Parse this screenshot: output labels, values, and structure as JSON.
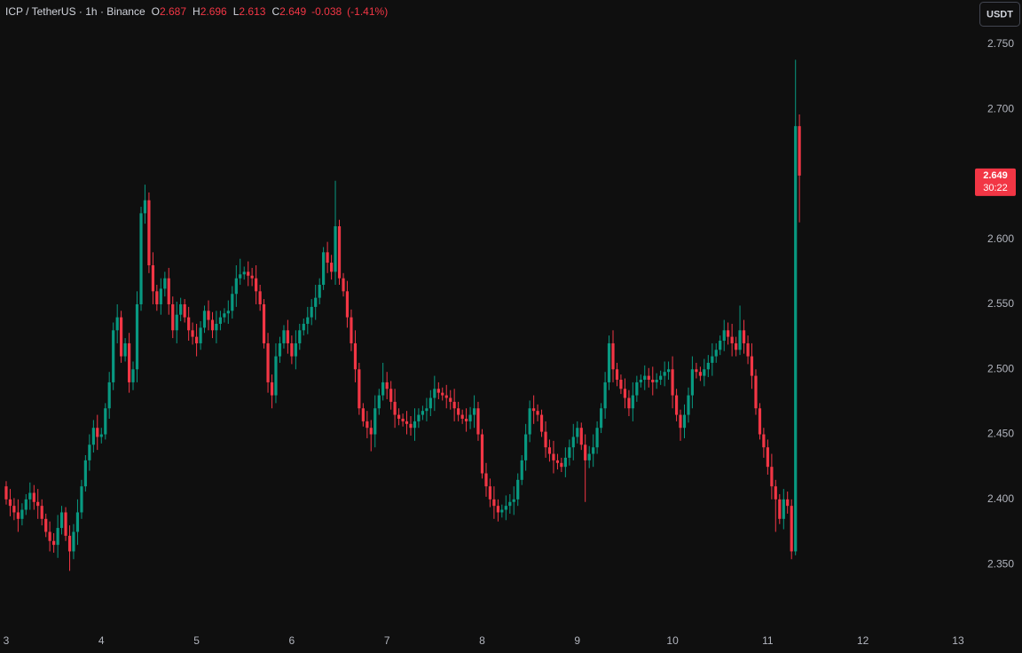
{
  "chart_data": {
    "type": "candlestick",
    "symbol": "ICP / TetherUS · 1h · Binance",
    "legend": {
      "o_label": "O",
      "o": 2.687,
      "h_label": "H",
      "h": 2.696,
      "l_label": "L",
      "l": 2.613,
      "c_label": "C",
      "c": 2.649,
      "change": -0.038,
      "change_pct": "(-1.41%)"
    },
    "currency": "USDT",
    "last_price": 2.649,
    "countdown": "30:22",
    "up_color": "#089981",
    "down_color": "#f23645",
    "grid": false,
    "xlim": [
      2.935,
      13.14
    ],
    "xticks": [
      3,
      4,
      5,
      6,
      7,
      8,
      9,
      10,
      11,
      12,
      13
    ],
    "ylim": [
      2.303,
      2.784
    ],
    "yticks": [
      {
        "value": 2.35,
        "label": "2.350"
      },
      {
        "value": 2.4,
        "label": "2.400"
      },
      {
        "value": 2.45,
        "label": "2.450"
      },
      {
        "value": 2.5,
        "label": "2.500"
      },
      {
        "value": 2.55,
        "label": "2.550"
      },
      {
        "value": 2.6,
        "label": "2.600"
      },
      {
        "value": 2.65,
        "label": "2.650"
      },
      {
        "value": 2.7,
        "label": "2.700"
      },
      {
        "value": 2.75,
        "label": "2.750"
      }
    ],
    "x": [
      3,
      3.042,
      3.083,
      3.125,
      3.167,
      3.208,
      3.25,
      3.292,
      3.333,
      3.375,
      3.417,
      3.458,
      3.5,
      3.542,
      3.583,
      3.625,
      3.667,
      3.708,
      3.75,
      3.792,
      3.833,
      3.875,
      3.917,
      3.958,
      4,
      4.042,
      4.083,
      4.125,
      4.167,
      4.208,
      4.25,
      4.292,
      4.333,
      4.375,
      4.417,
      4.458,
      4.5,
      4.542,
      4.583,
      4.625,
      4.667,
      4.708,
      4.75,
      4.792,
      4.833,
      4.875,
      4.917,
      4.958,
      5,
      5.042,
      5.083,
      5.125,
      5.167,
      5.208,
      5.25,
      5.292,
      5.333,
      5.375,
      5.417,
      5.458,
      5.5,
      5.542,
      5.583,
      5.625,
      5.667,
      5.708,
      5.75,
      5.792,
      5.833,
      5.875,
      5.917,
      5.958,
      6,
      6.042,
      6.083,
      6.125,
      6.167,
      6.208,
      6.25,
      6.292,
      6.333,
      6.375,
      6.417,
      6.458,
      6.5,
      6.542,
      6.583,
      6.625,
      6.667,
      6.708,
      6.75,
      6.792,
      6.833,
      6.875,
      6.917,
      6.958,
      7,
      7.042,
      7.083,
      7.125,
      7.167,
      7.208,
      7.25,
      7.292,
      7.333,
      7.375,
      7.417,
      7.458,
      7.5,
      7.542,
      7.583,
      7.625,
      7.667,
      7.708,
      7.75,
      7.792,
      7.833,
      7.875,
      7.917,
      7.958,
      8,
      8.042,
      8.083,
      8.125,
      8.167,
      8.208,
      8.25,
      8.292,
      8.333,
      8.375,
      8.417,
      8.458,
      8.5,
      8.542,
      8.583,
      8.625,
      8.667,
      8.708,
      8.75,
      8.792,
      8.833,
      8.875,
      8.917,
      8.958,
      9,
      9.042,
      9.083,
      9.125,
      9.167,
      9.208,
      9.25,
      9.292,
      9.333,
      9.375,
      9.417,
      9.458,
      9.5,
      9.542,
      9.583,
      9.625,
      9.667,
      9.708,
      9.75,
      9.792,
      9.833,
      9.875,
      9.917,
      9.958,
      10,
      10.042,
      10.083,
      10.125,
      10.167,
      10.208,
      10.25,
      10.292,
      10.333,
      10.375,
      10.417,
      10.458,
      10.5,
      10.542,
      10.583,
      10.625,
      10.667,
      10.708,
      10.75,
      10.792,
      10.833,
      10.875,
      10.917,
      10.958,
      11,
      11.042,
      11.083,
      11.125,
      11.167,
      11.208,
      11.25,
      11.292,
      11.333
    ],
    "open": [
      2.41,
      2.4,
      2.395,
      2.39,
      2.385,
      2.392,
      2.4,
      2.405,
      2.398,
      2.395,
      2.385,
      2.375,
      2.368,
      2.365,
      2.378,
      2.39,
      2.372,
      2.36,
      2.375,
      2.39,
      2.41,
      2.43,
      2.442,
      2.455,
      2.448,
      2.45,
      2.47,
      2.49,
      2.53,
      2.54,
      2.51,
      2.52,
      2.49,
      2.5,
      2.55,
      2.62,
      2.63,
      2.58,
      2.56,
      2.55,
      2.562,
      2.57,
      2.55,
      2.53,
      2.542,
      2.55,
      2.54,
      2.53,
      2.525,
      2.52,
      2.532,
      2.545,
      2.538,
      2.53,
      2.535,
      2.54,
      2.543,
      2.545,
      2.558,
      2.57,
      2.573,
      2.575,
      2.572,
      2.57,
      2.56,
      2.55,
      2.52,
      2.49,
      2.48,
      2.51,
      2.52,
      2.53,
      2.52,
      2.51,
      2.52,
      2.53,
      2.535,
      2.54,
      2.548,
      2.555,
      2.565,
      2.59,
      2.582,
      2.575,
      2.61,
      2.57,
      2.56,
      2.54,
      2.52,
      2.5,
      2.47,
      2.46,
      2.455,
      2.45,
      2.47,
      2.48,
      2.49,
      2.485,
      2.475,
      2.465,
      2.462,
      2.46,
      2.458,
      2.455,
      2.46,
      2.465,
      2.468,
      2.47,
      2.478,
      2.485,
      2.482,
      2.48,
      2.478,
      2.475,
      2.47,
      2.465,
      2.462,
      2.46,
      2.465,
      2.47,
      2.45,
      2.42,
      2.41,
      2.4,
      2.395,
      2.39,
      2.392,
      2.395,
      2.398,
      2.4,
      2.415,
      2.43,
      2.45,
      2.47,
      2.468,
      2.465,
      2.452,
      2.44,
      2.435,
      2.43,
      2.428,
      2.425,
      2.432,
      2.44,
      2.448,
      2.455,
      2.442,
      2.43,
      2.435,
      2.44,
      2.455,
      2.47,
      2.49,
      2.52,
      2.5,
      2.492,
      2.485,
      2.478,
      2.47,
      2.48,
      2.49,
      2.492,
      2.495,
      2.492,
      2.49,
      2.492,
      2.495,
      2.498,
      2.5,
      2.48,
      2.465,
      2.455,
      2.465,
      2.48,
      2.5,
      2.498,
      2.495,
      2.5,
      2.505,
      2.51,
      2.515,
      2.522,
      2.53,
      2.525,
      2.52,
      2.515,
      2.53,
      2.52,
      2.51,
      2.495,
      2.47,
      2.45,
      2.44,
      2.425,
      2.41,
      2.4,
      2.385,
      2.4,
      2.395,
      2.36,
      2.687
    ],
    "high": [
      2.414,
      2.408,
      2.401,
      2.4,
      2.397,
      2.404,
      2.413,
      2.411,
      2.408,
      2.4,
      2.389,
      2.383,
      2.374,
      2.388,
      2.395,
      2.394,
      2.38,
      2.381,
      2.4,
      2.415,
      2.434,
      2.45,
      2.461,
      2.465,
      2.455,
      2.474,
      2.498,
      2.536,
      2.55,
      2.545,
      2.524,
      2.528,
      2.506,
      2.56,
      2.625,
      2.642,
      2.636,
      2.59,
      2.565,
      2.57,
      2.575,
      2.578,
      2.556,
      2.552,
      2.555,
      2.554,
      2.548,
      2.536,
      2.535,
      2.537,
      2.549,
      2.553,
      2.544,
      2.545,
      2.545,
      2.547,
      2.553,
      2.564,
      2.58,
      2.585,
      2.579,
      2.583,
      2.578,
      2.58,
      2.565,
      2.554,
      2.528,
      2.496,
      2.52,
      2.525,
      2.534,
      2.538,
      2.526,
      2.53,
      2.535,
      2.539,
      2.548,
      2.554,
      2.565,
      2.57,
      2.594,
      2.598,
      2.588,
      2.645,
      2.615,
      2.574,
      2.568,
      2.546,
      2.53,
      2.505,
      2.474,
      2.468,
      2.461,
      2.48,
      2.485,
      2.505,
      2.498,
      2.491,
      2.485,
      2.47,
      2.466,
      2.468,
      2.464,
      2.47,
      2.47,
      2.472,
      2.478,
      2.484,
      2.495,
      2.49,
      2.486,
      2.488,
      2.484,
      2.485,
      2.475,
      2.469,
      2.47,
      2.471,
      2.48,
      2.475,
      2.454,
      2.428,
      2.416,
      2.41,
      2.4,
      2.396,
      2.403,
      2.404,
      2.41,
      2.42,
      2.434,
      2.458,
      2.476,
      2.48,
      2.473,
      2.469,
      2.46,
      2.446,
      2.445,
      2.435,
      2.432,
      2.44,
      2.446,
      2.458,
      2.46,
      2.459,
      2.45,
      2.441,
      2.45,
      2.46,
      2.474,
      2.498,
      2.526,
      2.53,
      2.505,
      2.496,
      2.493,
      2.484,
      2.49,
      2.495,
      2.496,
      2.503,
      2.501,
      2.502,
      2.497,
      2.499,
      2.506,
      2.506,
      2.51,
      2.485,
      2.469,
      2.473,
      2.486,
      2.51,
      2.505,
      2.502,
      2.508,
      2.511,
      2.52,
      2.52,
      2.526,
      2.538,
      2.536,
      2.535,
      2.525,
      2.549,
      2.538,
      2.526,
      2.52,
      2.5,
      2.474,
      2.455,
      2.446,
      2.435,
      2.415,
      2.404,
      2.408,
      2.406,
      2.4,
      2.738,
      2.696
    ],
    "low": [
      2.396,
      2.387,
      2.384,
      2.375,
      2.38,
      2.388,
      2.392,
      2.392,
      2.385,
      2.38,
      2.371,
      2.36,
      2.359,
      2.355,
      2.373,
      2.368,
      2.345,
      2.354,
      2.365,
      2.385,
      2.406,
      2.422,
      2.436,
      2.438,
      2.443,
      2.446,
      2.462,
      2.484,
      2.52,
      2.505,
      2.506,
      2.482,
      2.484,
      2.49,
      2.545,
      2.612,
      2.574,
      2.55,
      2.545,
      2.542,
      2.556,
      2.542,
      2.524,
      2.52,
      2.537,
      2.536,
      2.522,
      2.519,
      2.51,
      2.515,
      2.528,
      2.53,
      2.524,
      2.52,
      2.53,
      2.536,
      2.535,
      2.539,
      2.548,
      2.565,
      2.569,
      2.564,
      2.564,
      2.55,
      2.545,
      2.516,
      2.482,
      2.47,
      2.474,
      2.505,
      2.516,
      2.512,
      2.504,
      2.5,
      2.515,
      2.526,
      2.527,
      2.534,
      2.538,
      2.55,
      2.561,
      2.574,
      2.569,
      2.565,
      2.565,
      2.556,
      2.532,
      2.514,
      2.49,
      2.465,
      2.456,
      2.447,
      2.437,
      2.44,
      2.465,
      2.476,
      2.477,
      2.469,
      2.455,
      2.457,
      2.456,
      2.45,
      2.449,
      2.445,
      2.455,
      2.461,
      2.46,
      2.464,
      2.468,
      2.477,
      2.476,
      2.47,
      2.469,
      2.46,
      2.46,
      2.458,
      2.452,
      2.454,
      2.455,
      2.445,
      2.416,
      2.402,
      2.394,
      2.385,
      2.383,
      2.386,
      2.384,
      2.389,
      2.388,
      2.395,
      2.411,
      2.422,
      2.444,
      2.458,
      2.46,
      2.448,
      2.432,
      2.429,
      2.42,
      2.423,
      2.421,
      2.417,
      2.426,
      2.43,
      2.443,
      2.438,
      2.398,
      2.424,
      2.425,
      2.435,
      2.451,
      2.462,
      2.484,
      2.49,
      2.487,
      2.481,
      2.47,
      2.464,
      2.46,
      2.475,
      2.486,
      2.484,
      2.486,
      2.48,
      2.485,
      2.488,
      2.487,
      2.492,
      2.47,
      2.46,
      2.445,
      2.447,
      2.459,
      2.47,
      2.493,
      2.491,
      2.487,
      2.494,
      2.495,
      2.505,
      2.511,
      2.514,
      2.519,
      2.51,
      2.51,
      2.511,
      2.512,
      2.504,
      2.485,
      2.465,
      2.446,
      2.432,
      2.419,
      2.4,
      2.375,
      2.381,
      2.377,
      2.389,
      2.354,
      2.357,
      2.613
    ],
    "close": [
      2.4,
      2.395,
      2.39,
      2.385,
      2.392,
      2.4,
      2.405,
      2.398,
      2.395,
      2.385,
      2.375,
      2.368,
      2.365,
      2.378,
      2.39,
      2.372,
      2.36,
      2.375,
      2.39,
      2.41,
      2.43,
      2.442,
      2.455,
      2.448,
      2.45,
      2.47,
      2.49,
      2.53,
      2.54,
      2.51,
      2.52,
      2.49,
      2.5,
      2.55,
      2.62,
      2.63,
      2.58,
      2.56,
      2.55,
      2.562,
      2.57,
      2.55,
      2.53,
      2.542,
      2.55,
      2.54,
      2.53,
      2.525,
      2.52,
      2.532,
      2.545,
      2.538,
      2.53,
      2.535,
      2.54,
      2.543,
      2.545,
      2.558,
      2.57,
      2.573,
      2.575,
      2.572,
      2.57,
      2.56,
      2.55,
      2.52,
      2.49,
      2.48,
      2.51,
      2.52,
      2.53,
      2.52,
      2.51,
      2.52,
      2.53,
      2.535,
      2.54,
      2.548,
      2.555,
      2.565,
      2.59,
      2.582,
      2.575,
      2.61,
      2.57,
      2.56,
      2.54,
      2.52,
      2.5,
      2.47,
      2.46,
      2.455,
      2.45,
      2.47,
      2.48,
      2.49,
      2.485,
      2.475,
      2.465,
      2.462,
      2.46,
      2.458,
      2.455,
      2.46,
      2.465,
      2.468,
      2.47,
      2.478,
      2.485,
      2.482,
      2.48,
      2.478,
      2.475,
      2.47,
      2.465,
      2.462,
      2.46,
      2.465,
      2.47,
      2.45,
      2.42,
      2.41,
      2.4,
      2.395,
      2.39,
      2.392,
      2.395,
      2.398,
      2.4,
      2.415,
      2.43,
      2.45,
      2.47,
      2.468,
      2.465,
      2.452,
      2.44,
      2.435,
      2.43,
      2.428,
      2.425,
      2.432,
      2.44,
      2.448,
      2.455,
      2.442,
      2.43,
      2.435,
      2.44,
      2.455,
      2.47,
      2.49,
      2.52,
      2.5,
      2.492,
      2.485,
      2.478,
      2.47,
      2.48,
      2.49,
      2.492,
      2.495,
      2.492,
      2.49,
      2.492,
      2.495,
      2.498,
      2.5,
      2.48,
      2.465,
      2.455,
      2.465,
      2.48,
      2.5,
      2.498,
      2.495,
      2.5,
      2.505,
      2.51,
      2.515,
      2.522,
      2.53,
      2.525,
      2.52,
      2.515,
      2.53,
      2.52,
      2.51,
      2.495,
      2.47,
      2.45,
      2.44,
      2.425,
      2.41,
      2.4,
      2.385,
      2.4,
      2.395,
      2.36,
      2.687,
      2.649
    ]
  }
}
